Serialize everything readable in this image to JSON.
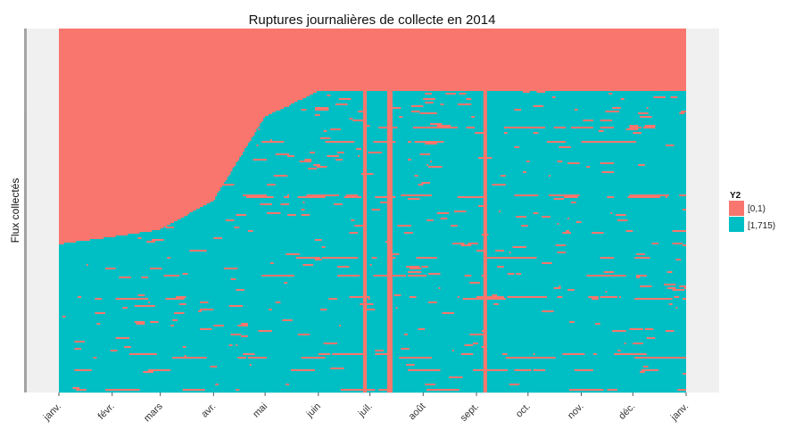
{
  "chart_data": {
    "type": "heatmap",
    "title": "Ruptures journalières de collecte en 2014",
    "xlabel": "",
    "ylabel": "Flux collectés",
    "x_start": "2014-01-01",
    "x_end": "2015-01-01",
    "x_ticks": [
      "2014-01-01",
      "2014-02-01",
      "2014-03-01",
      "2014-04-01",
      "2014-05-01",
      "2014-06-01",
      "2014-07-01",
      "2014-08-01",
      "2014-09-01",
      "2014-10-01",
      "2014-11-01",
      "2014-12-01",
      "2015-01-01"
    ],
    "x_tick_labels": [
      "janv.",
      "févr.",
      "mars",
      "avr.",
      "mai",
      "juin",
      "juil.",
      "août",
      "sept.",
      "oct.",
      "nov.",
      "déc.",
      "janv."
    ],
    "y_tick_labels_shown": false,
    "fill_variable": "Y2",
    "legend": {
      "title": "Y2",
      "position": "right",
      "items": [
        {
          "label": "[0,1)",
          "color": "#F8766D"
        },
        {
          "label": "[1,715)",
          "color": "#00BFC4"
        }
      ]
    },
    "notes": {
      "series_start_by_date": [
        {
          "date": "2014-01-01",
          "approx_share_of_flows": 0.41
        },
        {
          "date": "2014-02-01",
          "approx_share_of_flows": 0.43
        },
        {
          "date": "2014-03-01",
          "approx_share_of_flows": 0.45
        },
        {
          "date": "2014-04-01",
          "approx_share_of_flows": 0.53
        },
        {
          "date": "2014-05-01",
          "approx_share_of_flows": 0.76
        },
        {
          "date": "2014-06-01",
          "approx_share_of_flows": 0.83
        }
      ],
      "full_break_days": [
        "2014-06-27",
        "2014-06-28",
        "2014-07-11",
        "2014-07-12",
        "2014-07-13",
        "2014-09-05",
        "2014-09-06"
      ]
    }
  }
}
